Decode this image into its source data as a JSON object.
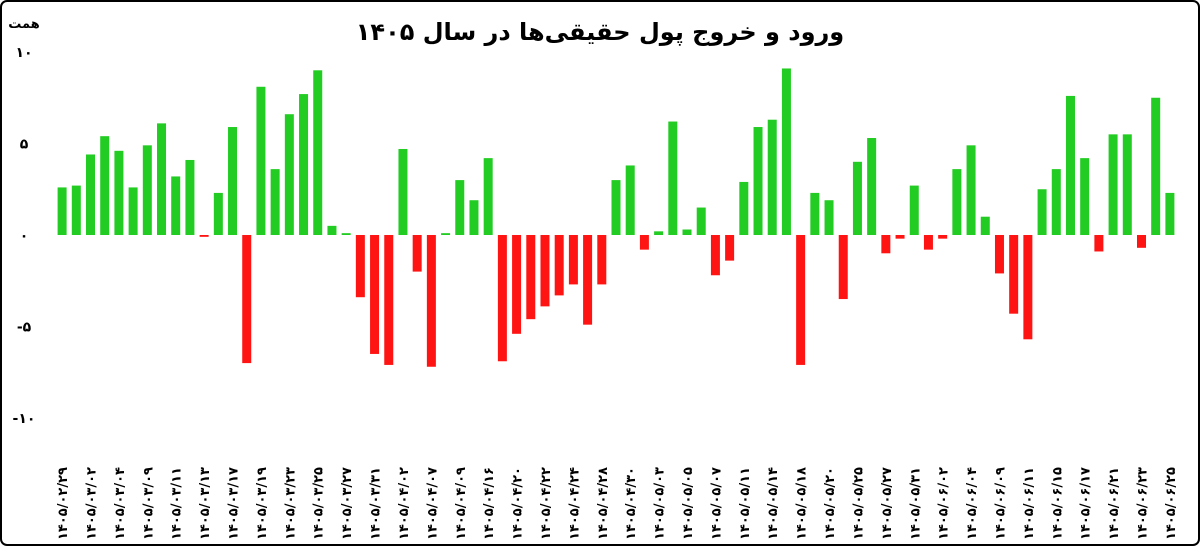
{
  "chart_data": {
    "type": "bar",
    "title": "ورود و خروج پول حقیقی‌ها در سال ۱۴۰۵",
    "y_unit": "همت",
    "categories": [
      "۱۴۰۵/۰۲/۲۹",
      null,
      "۱۴۰۵/۰۳/۰۲",
      null,
      "۱۴۰۵/۰۳/۰۴",
      null,
      "۱۴۰۵/۰۳/۰۹",
      null,
      "۱۴۰۵/۰۳/۱۱",
      null,
      "۱۴۰۵/۰۳/۱۳",
      null,
      "۱۴۰۵/۰۳/۱۷",
      null,
      "۱۴۰۵/۰۳/۱۹",
      null,
      "۱۴۰۵/۰۳/۲۳",
      null,
      "۱۴۰۵/۰۳/۲۵",
      null,
      "۱۴۰۵/۰۳/۲۷",
      null,
      "۱۴۰۵/۰۳/۳۱",
      null,
      "۱۴۰۵/۰۴/۰۲",
      null,
      "۱۴۰۵/۰۴/۰۷",
      null,
      "۱۴۰۵/۰۴/۰۹",
      null,
      "۱۴۰۵/۰۴/۱۶",
      null,
      "۱۴۰۵/۰۴/۲۰",
      null,
      "۱۴۰۵/۰۴/۲۲",
      null,
      "۱۴۰۵/۰۴/۲۴",
      null,
      "۱۴۰۵/۰۴/۲۸",
      null,
      "۱۴۰۵/۰۴/۳۰",
      null,
      "۱۴۰۵/۰۵/۰۳",
      null,
      "۱۴۰۵/۰۵/۰۵",
      null,
      "۱۴۰۵/۰۵/۰۷",
      null,
      "۱۴۰۵/۰۵/۱۱",
      null,
      "۱۴۰۵/۰۵/۱۴",
      null,
      "۱۴۰۵/۰۵/۱۸",
      null,
      "۱۴۰۵/۰۵/۲۰",
      null,
      "۱۴۰۵/۰۵/۲۵",
      null,
      "۱۴۰۵/۰۵/۲۷",
      null,
      "۱۴۰۵/۰۵/۳۱",
      null,
      "۱۴۰۵/۰۶/۰۲",
      null,
      "۱۴۰۵/۰۶/۰۴",
      null,
      "۱۴۰۵/۰۶/۰۹",
      null,
      "۱۴۰۵/۰۶/۱۱",
      null,
      "۱۴۰۵/۰۶/۱۵",
      null,
      "۱۴۰۵/۰۶/۱۷",
      null,
      "۱۴۰۵/۰۶/۲۱",
      null,
      "۱۴۰۵/۰۶/۲۳",
      null,
      "۱۴۰۵/۰۶/۲۵"
    ],
    "values": [
      2.6,
      2.7,
      4.4,
      5.4,
      4.6,
      2.6,
      4.9,
      6.1,
      3.2,
      4.1,
      -0.1,
      2.3,
      5.9,
      -7.0,
      8.1,
      3.6,
      6.6,
      7.7,
      9.0,
      0.5,
      0.1,
      -3.4,
      -6.5,
      -7.1,
      4.7,
      -2.0,
      -7.2,
      0.1,
      3.0,
      1.9,
      4.2,
      -6.9,
      -5.4,
      -4.6,
      -3.9,
      -3.3,
      -2.7,
      -4.9,
      -2.7,
      3.0,
      3.8,
      -0.8,
      0.2,
      6.2,
      0.3,
      1.5,
      -2.2,
      -1.4,
      2.9,
      5.9,
      6.3,
      9.1,
      -7.1,
      2.3,
      1.9,
      -3.5,
      4.0,
      5.3,
      -1.0,
      -0.2,
      2.7,
      -0.8,
      -0.2,
      3.6,
      4.9,
      1.0,
      -2.1,
      -4.3,
      -5.7,
      2.5,
      3.6,
      7.6,
      4.2,
      -0.9,
      5.5,
      5.5,
      -0.7,
      7.5,
      2.3
    ],
    "positive_color": "#22cc22",
    "negative_color": "#ff1414",
    "ylim": [
      -10,
      10
    ],
    "yticks": [
      {
        "value": -10,
        "label": "-۱۰"
      },
      {
        "value": -5,
        "label": "-۵"
      },
      {
        "value": 0,
        "label": "۰"
      },
      {
        "value": 5,
        "label": "۵"
      },
      {
        "value": 10,
        "label": "۱۰"
      }
    ],
    "grid": false
  }
}
